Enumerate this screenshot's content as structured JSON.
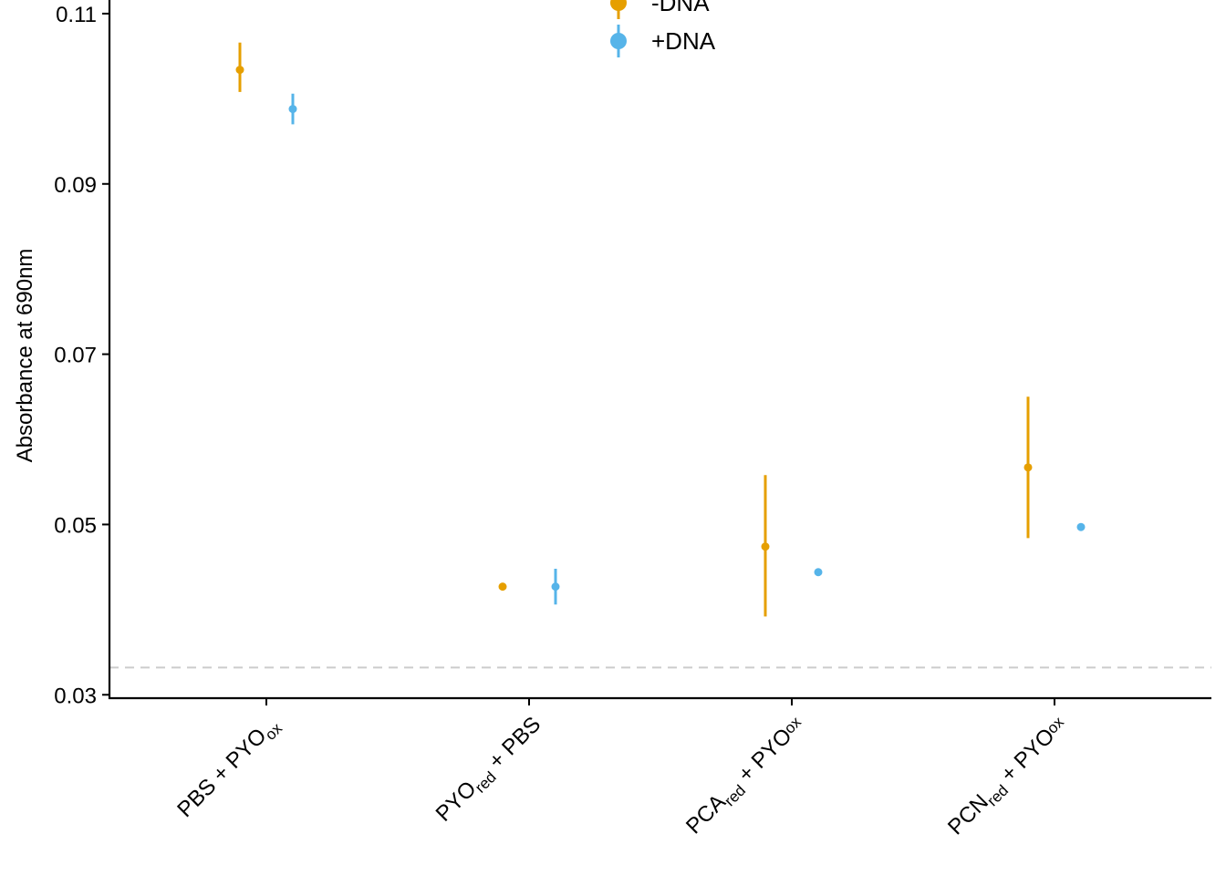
{
  "chart_data": {
    "type": "scatter",
    "title": "",
    "xlabel": "",
    "ylabel": "Absorbance at 690nm",
    "ylim": [
      0.0296,
      0.1116
    ],
    "yticks": [
      {
        "value": 0.03,
        "label": "0.03"
      },
      {
        "value": 0.05,
        "label": "0.05"
      },
      {
        "value": 0.07,
        "label": "0.07"
      },
      {
        "value": 0.09,
        "label": "0.09"
      },
      {
        "value": 0.11,
        "label": "0.11"
      }
    ],
    "categories": [
      {
        "main": "PBS + PYO",
        "sub": "ox",
        "tail": ""
      },
      {
        "main": "PYO",
        "sub": "red",
        "tail": " + PBS"
      },
      {
        "main": "PCA",
        "sub": "red",
        "tail": " + PYO",
        "sub2": "ox"
      },
      {
        "main": "PCN",
        "sub": "red",
        "tail": " + PYO",
        "sub2": "ox"
      }
    ],
    "series": [
      {
        "name": "-DNA",
        "color": "#E69F00",
        "mean": [
          0.1034,
          0.0427,
          0.0474,
          0.0567
        ],
        "lower": [
          0.1008,
          0.0425,
          0.0392,
          0.0484
        ],
        "upper": [
          0.1066,
          0.0429,
          0.0558,
          0.065
        ]
      },
      {
        "name": "+DNA",
        "color": "#56B4E9",
        "mean": [
          0.0988,
          0.0427,
          0.0444,
          0.0497
        ],
        "lower": [
          0.097,
          0.0406,
          0.0442,
          0.0495
        ],
        "upper": [
          0.1006,
          0.0448,
          0.0447,
          0.0499
        ]
      }
    ],
    "reference_line": {
      "value": 0.0332,
      "style": "dashed",
      "color": "#cccccc"
    },
    "legend": {
      "position": "top",
      "entries": [
        "-DNA",
        "+DNA"
      ]
    },
    "grid": false
  }
}
